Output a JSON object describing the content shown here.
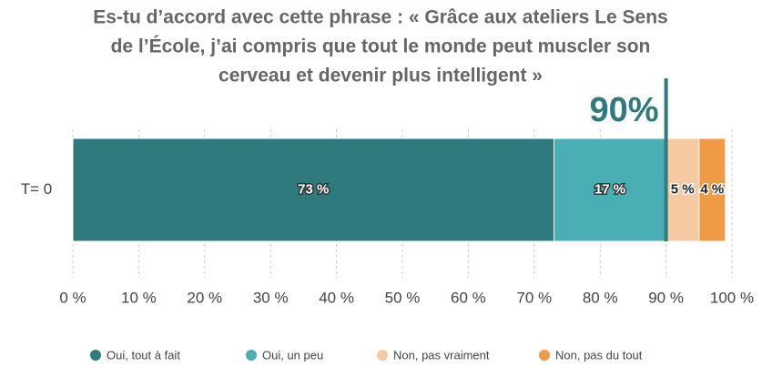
{
  "chart_data": {
    "type": "stacked_barh",
    "title": [
      "Es-tu d’accord avec cette phrase : « Grâce aux ateliers Le Sens",
      "de l’École, j’ai compris que tout le monde peut muscler son",
      "cerveau et devenir plus intelligent »"
    ],
    "categories": [
      "T= 0"
    ],
    "series": [
      {
        "name": "Oui, tout à fait",
        "color": "#2e7a7c",
        "values": [
          73
        ],
        "value_labels": [
          "73 %"
        ]
      },
      {
        "name": "Oui, un peu",
        "color": "#4aafb4",
        "values": [
          17
        ],
        "value_labels": [
          "17 %"
        ]
      },
      {
        "name": "Non, pas vraiment",
        "color": "#f7c9a0",
        "values": [
          5
        ],
        "value_labels": [
          "5 %"
        ]
      },
      {
        "name": "Non, pas du tout",
        "color": "#ef9a45",
        "values": [
          4
        ],
        "value_labels": [
          "4 %"
        ]
      }
    ],
    "xlim": [
      0,
      100
    ],
    "xticks": [
      {
        "value": 0,
        "label": "0 %"
      },
      {
        "value": 10,
        "label": "10 %"
      },
      {
        "value": 20,
        "label": "20 %"
      },
      {
        "value": 30,
        "label": "30 %"
      },
      {
        "value": 40,
        "label": "40 %"
      },
      {
        "value": 50,
        "label": "50 %"
      },
      {
        "value": 60,
        "label": "60 %"
      },
      {
        "value": 70,
        "label": "70 %"
      },
      {
        "value": 80,
        "label": "80 %"
      },
      {
        "value": 90,
        "label": "90 %"
      },
      {
        "value": 100,
        "label": "100 %"
      }
    ],
    "grid": true,
    "legend": "bottom",
    "annotations": [
      {
        "value": 90,
        "label": "90%",
        "color": "#2e7a7c"
      }
    ]
  }
}
